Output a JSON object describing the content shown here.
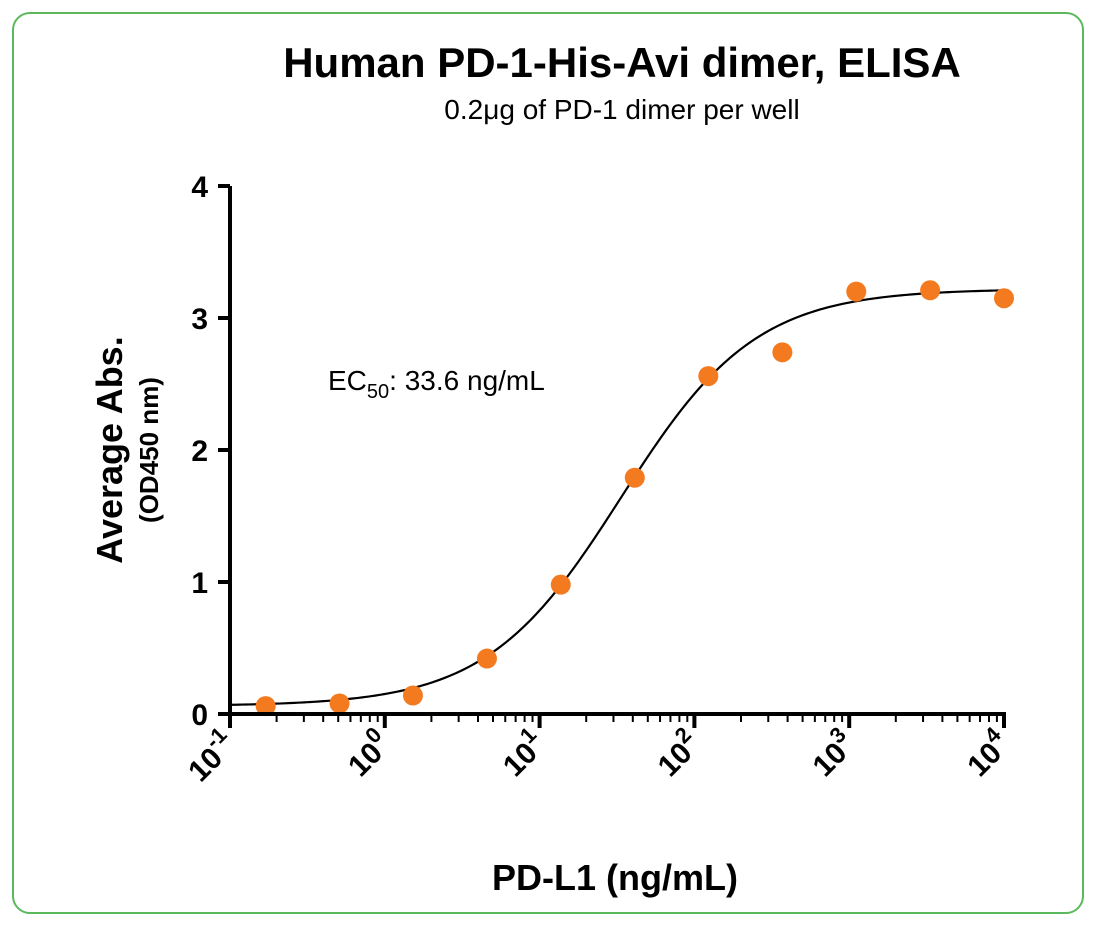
{
  "chart_data": {
    "type": "scatter",
    "title": "Human PD-1-His-Avi dimer, ELISA",
    "subtitle": "0.2μg of PD-1 dimer per well",
    "xlabel": "PD-L1 (ng/mL)",
    "ylabel": "Average Abs.",
    "ylabel_sub": "(OD450 nm)",
    "x_scale": "log",
    "xlim": [
      0.1,
      10000
    ],
    "ylim": [
      0,
      4
    ],
    "x_ticks": [
      {
        "base": "10",
        "exp": "-1",
        "value": 0.1
      },
      {
        "base": "10",
        "exp": "0",
        "value": 1
      },
      {
        "base": "10",
        "exp": "1",
        "value": 10
      },
      {
        "base": "10",
        "exp": "2",
        "value": 100
      },
      {
        "base": "10",
        "exp": "3",
        "value": 1000
      },
      {
        "base": "10",
        "exp": "4",
        "value": 10000
      }
    ],
    "y_ticks": [
      "0",
      "1",
      "2",
      "3",
      "4"
    ],
    "annotation": {
      "prefix": "EC",
      "sub": "50",
      "suffix": ": 33.6 ng/mL"
    },
    "marker_color": "#f47a20",
    "curve_color": "#000000",
    "fit": {
      "bottom": 0.06,
      "top": 3.22,
      "ec50": 33.6,
      "hill": 1.0
    },
    "series": [
      {
        "x": [
          0.17,
          0.51,
          1.52,
          4.57,
          13.7,
          41.2,
          123,
          370,
          1111,
          3333,
          10000
        ],
        "y": [
          0.06,
          0.08,
          0.14,
          0.42,
          0.98,
          1.79,
          2.56,
          2.74,
          3.2,
          3.21,
          3.15
        ]
      }
    ]
  }
}
